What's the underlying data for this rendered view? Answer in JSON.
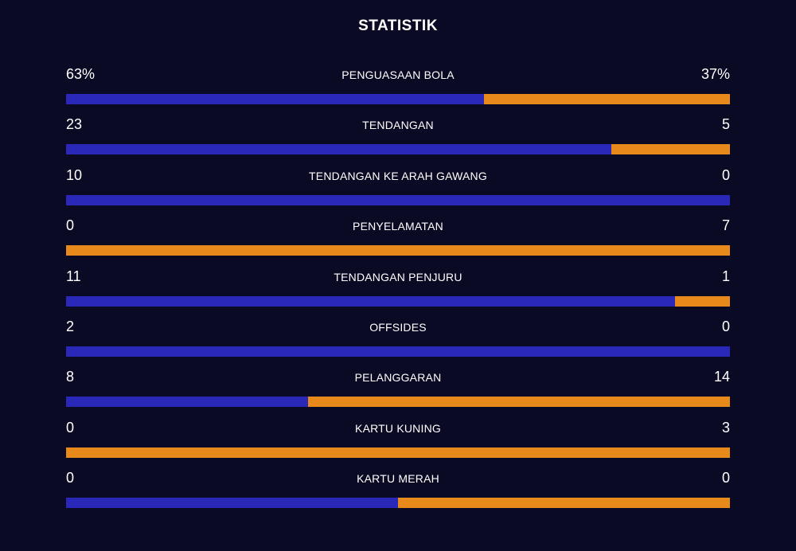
{
  "title": "STATISTIK",
  "colors": {
    "background": "#0a0a24",
    "home": "#2a28b8",
    "away": "#e8891c",
    "text": "#ffffff"
  },
  "stats": [
    {
      "label": "PENGUASAAN BOLA",
      "home": "63%",
      "away": "37%",
      "home_share": 0.63
    },
    {
      "label": "TENDANGAN",
      "home": "23",
      "away": "5",
      "home_share": 0.821
    },
    {
      "label": "TENDANGAN KE ARAH GAWANG",
      "home": "10",
      "away": "0",
      "home_share": 1.0
    },
    {
      "label": "PENYELAMATAN",
      "home": "0",
      "away": "7",
      "home_share": 0.0
    },
    {
      "label": "TENDANGAN PENJURU",
      "home": "11",
      "away": "1",
      "home_share": 0.917
    },
    {
      "label": "OFFSIDES",
      "home": "2",
      "away": "0",
      "home_share": 1.0
    },
    {
      "label": "PELANGGARAN",
      "home": "8",
      "away": "14",
      "home_share": 0.364
    },
    {
      "label": "KARTU KUNING",
      "home": "0",
      "away": "3",
      "home_share": 0.0
    },
    {
      "label": "KARTU MERAH",
      "home": "0",
      "away": "0",
      "home_share": 0.5
    }
  ]
}
